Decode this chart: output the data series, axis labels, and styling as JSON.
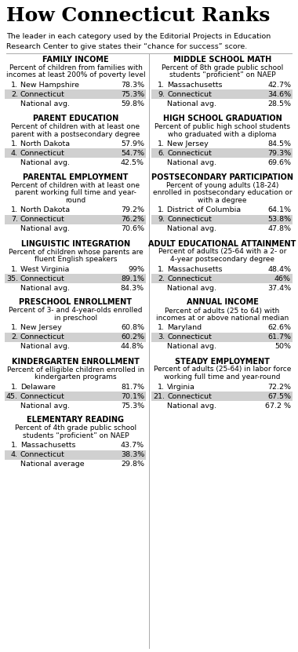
{
  "title": "How Connecticut Ranks",
  "subtitle": "The leader in each category used by the Editorial Projects in Education\nResearch Center to give states their “chance for success” score.",
  "left_sections": [
    {
      "heading": "FAMILY INCOME",
      "description": "Percent of children from families with\nincomes at least 200% of poverty level",
      "rows": [
        {
          "rank": "1.",
          "name": "New Hampshire",
          "value": "78.3%",
          "highlight": false
        },
        {
          "rank": "2.",
          "name": "Connecticut",
          "value": "75.3%",
          "highlight": true
        },
        {
          "rank": "",
          "name": "National avg.",
          "value": "59.8%",
          "highlight": false
        }
      ]
    },
    {
      "heading": "PARENT EDUCATION",
      "description": "Percent of children with at least one\nparent with a postsecondary degree",
      "rows": [
        {
          "rank": "1.",
          "name": "North Dakota",
          "value": "57.9%",
          "highlight": false
        },
        {
          "rank": "4.",
          "name": "Connecticut",
          "value": "54.7%",
          "highlight": true
        },
        {
          "rank": "",
          "name": "National avg.",
          "value": "42.5%",
          "highlight": false
        }
      ]
    },
    {
      "heading": "PARENTAL EMPLOYMENT",
      "description": "Percent of children with at least one\nparent working full time and year-\nround",
      "rows": [
        {
          "rank": "1.",
          "name": "North Dakota",
          "value": "79.2%",
          "highlight": false
        },
        {
          "rank": "7.",
          "name": "Connecticut",
          "value": "76.2%",
          "highlight": true
        },
        {
          "rank": "",
          "name": "National avg.",
          "value": "70.6%",
          "highlight": false
        }
      ]
    },
    {
      "heading": "LINGUISTIC INTEGRATION",
      "description": "Percent of children whose parents are\nfluent English speakers",
      "rows": [
        {
          "rank": "1.",
          "name": "West Virginia",
          "value": "99%",
          "highlight": false
        },
        {
          "rank": "35.",
          "name": "Connecticut",
          "value": "89.1%",
          "highlight": true
        },
        {
          "rank": "",
          "name": "National avg.",
          "value": "84.3%",
          "highlight": false
        }
      ]
    },
    {
      "heading": "PRESCHOOL ENROLLMENT",
      "description": "Percent of 3- and 4-year-olds enrolled\nin preschool",
      "rows": [
        {
          "rank": "1.",
          "name": "New Jersey",
          "value": "60.8%",
          "highlight": false
        },
        {
          "rank": "2.",
          "name": "Connecticut",
          "value": "60.2%",
          "highlight": true
        },
        {
          "rank": "",
          "name": "National avg.",
          "value": "44.8%",
          "highlight": false
        }
      ]
    },
    {
      "heading": "KINDERGARTEN ENROLLMENT",
      "description": "Percent of elligible children enrolled in\nkindergarten programs",
      "rows": [
        {
          "rank": "1.",
          "name": "Delaware",
          "value": "81.7%",
          "highlight": false
        },
        {
          "rank": "45.",
          "name": "Connecticut",
          "value": "70.1%",
          "highlight": true
        },
        {
          "rank": "",
          "name": "National avg.",
          "value": "75.3%",
          "highlight": false
        }
      ]
    },
    {
      "heading": "ELEMENTARY READING",
      "description": "Percent of 4th grade public school\nstudents “proficient” on NAEP",
      "rows": [
        {
          "rank": "1.",
          "name": "Massachusetts",
          "value": "43.7%",
          "highlight": false
        },
        {
          "rank": "4.",
          "name": "Connecticut",
          "value": "38.3%",
          "highlight": true
        },
        {
          "rank": "",
          "name": "National average",
          "value": "29.8%",
          "highlight": false
        }
      ]
    }
  ],
  "right_sections": [
    {
      "heading": "MIDDLE SCHOOL MATH",
      "description": "Percent of 8th grade public school\nstudents “proficient” on NAEP",
      "rows": [
        {
          "rank": "1.",
          "name": "Massachusetts",
          "value": "42.7%",
          "highlight": false
        },
        {
          "rank": "9.",
          "name": "Connecticut",
          "value": "34.6%",
          "highlight": true
        },
        {
          "rank": "",
          "name": "National avg.",
          "value": "28.5%",
          "highlight": false
        }
      ]
    },
    {
      "heading": "HIGH SCHOOL GRADUATION",
      "description": "Percent of public high school students\nwho graduated with a diploma",
      "rows": [
        {
          "rank": "1.",
          "name": "New Jersey",
          "value": "84.5%",
          "highlight": false
        },
        {
          "rank": "6.",
          "name": "Connecticut",
          "value": "79.3%",
          "highlight": true
        },
        {
          "rank": "",
          "name": "National avg.",
          "value": "69.6%",
          "highlight": false
        }
      ]
    },
    {
      "heading": "POSTSECONDARY PARTICIPATION",
      "description": "Percent of young adults (18-24)\nenrolled in postsecondary education or\nwith a degree",
      "rows": [
        {
          "rank": "1.",
          "name": "District of Columbia",
          "value": "64.1%",
          "highlight": false
        },
        {
          "rank": "9.",
          "name": "Connecticut",
          "value": "53.8%",
          "highlight": true
        },
        {
          "rank": "",
          "name": "National avg.",
          "value": "47.8%",
          "highlight": false
        }
      ]
    },
    {
      "heading": "ADULT EDUCATIONAL ATTAINMENT",
      "description": "Percent of adults (25-64 with a 2- or\n4-year postsecondary degree",
      "rows": [
        {
          "rank": "1.",
          "name": "Massachusetts",
          "value": "48.4%",
          "highlight": false
        },
        {
          "rank": "2.",
          "name": "Connecticut",
          "value": "46%",
          "highlight": true
        },
        {
          "rank": "",
          "name": "National avg.",
          "value": "37.4%",
          "highlight": false
        }
      ]
    },
    {
      "heading": "ANNUAL INCOME",
      "description": "Percent of adults (25 to 64) with\nincomes at or above national median",
      "rows": [
        {
          "rank": "1.",
          "name": "Maryland",
          "value": "62.6%",
          "highlight": false
        },
        {
          "rank": "3.",
          "name": "Connecticut",
          "value": "61.7%",
          "highlight": true
        },
        {
          "rank": "",
          "name": "National avg.",
          "value": "50%",
          "highlight": false
        }
      ]
    },
    {
      "heading": "STEADY EMPLOYMENT",
      "description": "Percent of adults (25-64) in labor force\nworking full time and year-round",
      "rows": [
        {
          "rank": "1.",
          "name": "Virginia",
          "value": "72.2%",
          "highlight": false
        },
        {
          "rank": "21.",
          "name": "Connecticut",
          "value": "67.5%",
          "highlight": true
        },
        {
          "rank": "",
          "name": "National avg.",
          "value": "67.2 %",
          "highlight": false
        }
      ]
    }
  ],
  "highlight_color": "#d0d0d0",
  "divider_color": "#aaaaaa",
  "background_color": "#ffffff",
  "title_fontsize": 18,
  "subtitle_fontsize": 6.8,
  "heading_fontsize": 7.0,
  "desc_fontsize": 6.5,
  "row_fontsize": 6.8
}
